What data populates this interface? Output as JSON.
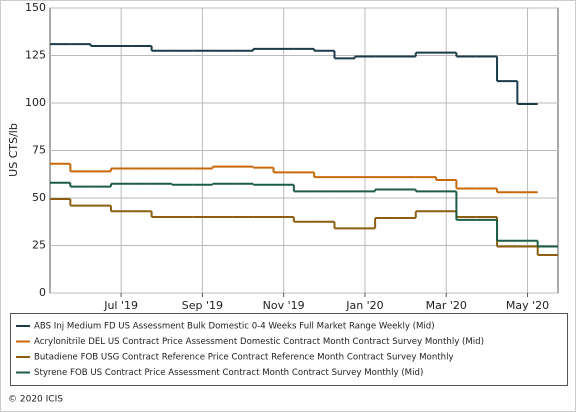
{
  "chart_data": {
    "type": "step-line",
    "y_label": "US CTS/lb",
    "categories": [
      null,
      null,
      null,
      "Jul '19",
      null,
      null,
      null,
      "Sep '19",
      null,
      null,
      null,
      "Nov '19",
      null,
      null,
      null,
      "Jan '20",
      null,
      null,
      null,
      "Mar '20",
      null,
      null,
      null,
      "May '20",
      null
    ],
    "ylim": [
      0,
      150
    ],
    "yticks": [
      0,
      25,
      50,
      75,
      100,
      125,
      150
    ],
    "grid": true,
    "series": [
      {
        "name": "ABS Inj Medium FD US Assessment Bulk Domestic 0-4 Weeks Full Market Range Weekly (Mid)",
        "color": "#1b3b4b",
        "values": [
          131,
          131,
          130,
          130,
          130,
          127.5,
          127.5,
          127.5,
          127.5,
          127.5,
          128.5,
          128.5,
          128.5,
          127.5,
          123.5,
          124.5,
          124.5,
          124.5,
          126.5,
          126.5,
          124.5,
          124.5,
          111.5,
          99.5,
          null
        ]
      },
      {
        "name": "Acrylonitrile DEL US Contract Price Assessment Domestic Contract Month Contract Survey Monthly (Mid)",
        "color": "#c8680a",
        "values": [
          68,
          64,
          64,
          65.5,
          65.5,
          65.5,
          65.5,
          65.5,
          66.5,
          66.5,
          66,
          63.5,
          63.5,
          61,
          61,
          61,
          61,
          61,
          61,
          59.5,
          55,
          55,
          53,
          53,
          null
        ]
      },
      {
        "name": "Butadiene FOB USG Contract Reference Price Contract Reference Month Contract Survey Monthly",
        "color": "#8b5e10",
        "values": [
          49.5,
          46,
          46,
          43,
          43,
          40,
          40,
          40,
          40,
          40,
          40,
          40,
          37.5,
          37.5,
          34,
          34,
          39.5,
          39.5,
          43,
          43,
          40,
          40,
          24.5,
          24.5,
          20
        ]
      },
      {
        "name": "Styrene FOB US Contract Price Assessment Contract Month Contract Survey Monthly (Mid)",
        "color": "#1d5c46",
        "values": [
          58,
          56,
          56,
          57.5,
          57.5,
          57.5,
          57,
          57,
          57.5,
          57.5,
          57,
          57,
          53.5,
          53.5,
          53.5,
          53.5,
          54.5,
          54.5,
          53.5,
          53.5,
          38.5,
          38.5,
          27.5,
          27.5,
          24.5
        ]
      }
    ],
    "footer": "© 2020 ICIS"
  }
}
